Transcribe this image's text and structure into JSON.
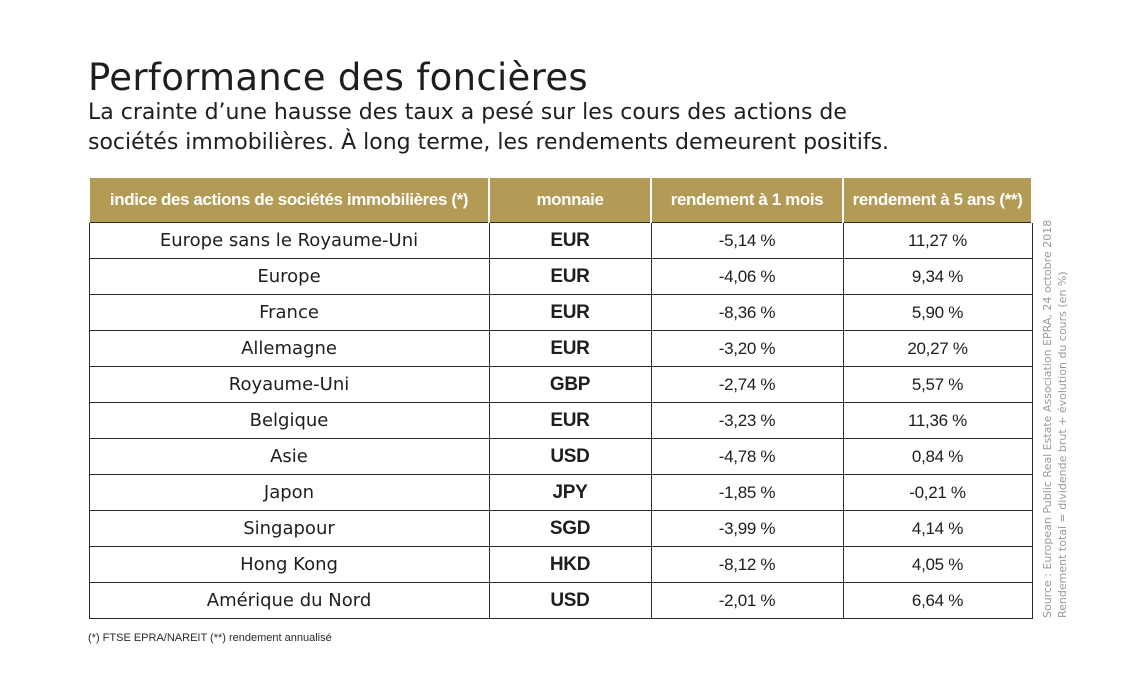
{
  "header": {
    "title": "Performance des foncières",
    "subtitle_lines": [
      "La crainte d’une hausse des taux a pesé sur les cours des actions de",
      "sociétés immobilières. À long terme, les rendements demeurent positifs."
    ]
  },
  "table": {
    "columns": [
      "indice des actions de sociétés immobilières (*)",
      "monnaie",
      "rendement à 1 mois",
      "rendement à 5 ans (**)"
    ],
    "rows": [
      {
        "name": "Europe sans le Royaume-Uni",
        "currency": "EUR",
        "one_month": "-5,14 %",
        "five_years": "11,27 %"
      },
      {
        "name": "Europe",
        "currency": "EUR",
        "one_month": "-4,06 %",
        "five_years": "9,34 %"
      },
      {
        "name": "France",
        "currency": "EUR",
        "one_month": "-8,36 %",
        "five_years": "5,90 %"
      },
      {
        "name": "Allemagne",
        "currency": "EUR",
        "one_month": "-3,20 %",
        "five_years": "20,27 %"
      },
      {
        "name": "Royaume-Uni",
        "currency": "GBP",
        "one_month": "-2,74 %",
        "five_years": "5,57 %"
      },
      {
        "name": "Belgique",
        "currency": "EUR",
        "one_month": "-3,23 %",
        "five_years": "11,36 %"
      },
      {
        "name": "Asie",
        "currency": "USD",
        "one_month": "-4,78 %",
        "five_years": "0,84 %"
      },
      {
        "name": "Japon",
        "currency": "JPY",
        "one_month": "-1,85 %",
        "five_years": "-0,21 %"
      },
      {
        "name": "Singapour",
        "currency": "SGD",
        "one_month": "-3,99 %",
        "five_years": "4,14 %"
      },
      {
        "name": "Hong Kong",
        "currency": "HKD",
        "one_month": "-8,12 %",
        "five_years": "4,05 %"
      },
      {
        "name": "Amérique du Nord",
        "currency": "USD",
        "one_month": "-2,01 %",
        "five_years": "6,64 %"
      }
    ]
  },
  "footnote": "(*) FTSE EPRA/NAREIT  (**) rendement annualisé",
  "source": {
    "line1": "Source : European Public Real Estate Association EPRA, 24 octobre 2018",
    "line2": "Rendement total = dividende brut + évolution du cours (en %)"
  },
  "colors": {
    "header_background": "#b39a55",
    "header_text": "#ffffff",
    "source_text": "#9a9a9a"
  }
}
